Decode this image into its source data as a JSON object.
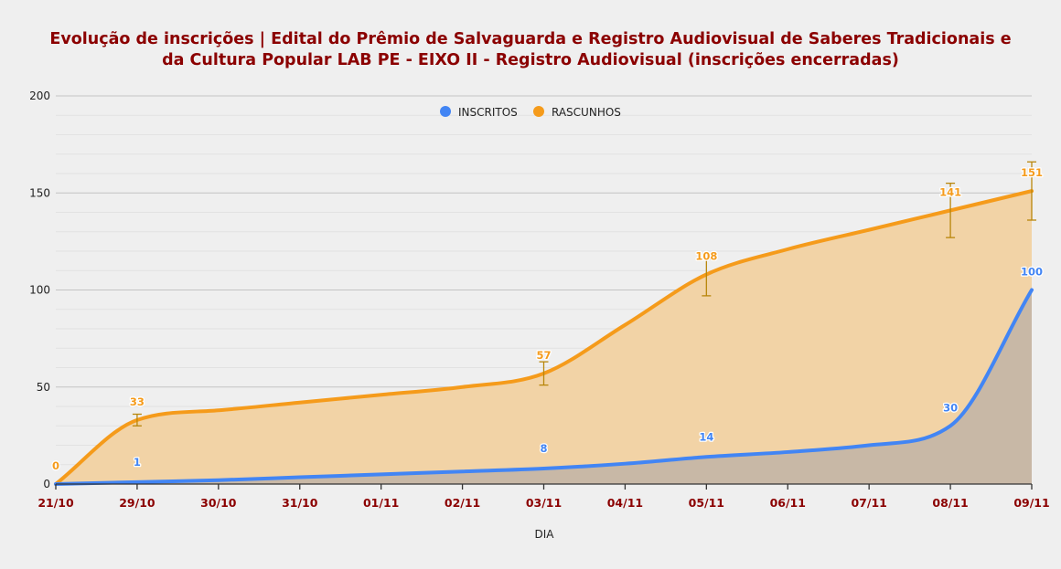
{
  "chart_data": {
    "type": "area",
    "title_lines": [
      "Evolução de inscrições | Edital do Prêmio de Salvaguarda e Registro Audiovisual de Saberes Tradicionais e",
      "da Cultura Popular LAB PE - EIXO II - Registro Audiovisual (inscrições encerradas)"
    ],
    "xlabel": "DIA",
    "ylabel": "",
    "ylim": [
      0,
      200
    ],
    "yticks": [
      0,
      50,
      100,
      150,
      200
    ],
    "categories": [
      "21/10",
      "29/10",
      "30/10",
      "31/10",
      "01/11",
      "02/11",
      "03/11",
      "04/11",
      "05/11",
      "06/11",
      "07/11",
      "08/11",
      "09/11"
    ],
    "legend_position": "top-center",
    "series": [
      {
        "name": "INSCRITOS",
        "color": "#4285f4",
        "fill": "#c8b8a6",
        "values": [
          0,
          1,
          2,
          3.5,
          5,
          6.5,
          8,
          10.5,
          14,
          16.5,
          20,
          30,
          100
        ],
        "labeled": [
          {
            "index": 1,
            "value": 1
          },
          {
            "index": 6,
            "value": 8
          },
          {
            "index": 8,
            "value": 14
          },
          {
            "index": 11,
            "value": 30
          },
          {
            "index": 12,
            "value": 100
          }
        ]
      },
      {
        "name": "RASCUNHOS",
        "color": "#f59b1b",
        "fill": "#f2d3a6",
        "values": [
          0,
          33,
          38,
          42,
          46,
          50,
          57,
          82,
          108,
          121,
          131,
          141,
          151
        ],
        "labeled": [
          {
            "index": 0,
            "value": 0
          },
          {
            "index": 1,
            "value": 33
          },
          {
            "index": 6,
            "value": 57
          },
          {
            "index": 8,
            "value": 108
          },
          {
            "index": 11,
            "value": 141
          },
          {
            "index": 12,
            "value": 151
          }
        ],
        "error_bars": [
          {
            "index": 1,
            "low": 30,
            "high": 36
          },
          {
            "index": 6,
            "low": 51,
            "high": 63
          },
          {
            "index": 8,
            "low": 97,
            "high": 116
          },
          {
            "index": 11,
            "low": 127,
            "high": 155
          },
          {
            "index": 12,
            "low": 136,
            "high": 166
          }
        ]
      }
    ]
  }
}
